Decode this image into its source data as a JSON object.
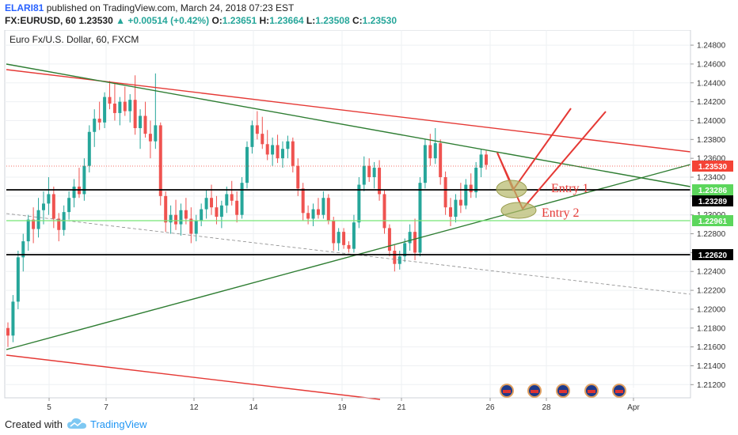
{
  "header": {
    "user": "ELARI81",
    "published": "published on TradingView.com, March 24, 2018 07:23 EST",
    "symbol": "FX:EURUSD, 60",
    "last": "1.23530",
    "arrow": "▲",
    "change": "+0.00514 (+0.42%)",
    "o_label": "O:",
    "o_value": "1.23651",
    "h_label": "H:",
    "h_value": "1.23664",
    "l_label": "L:",
    "l_value": "1.23508",
    "c_label": "C:",
    "c_value": "1.23530"
  },
  "footer": {
    "created": "Created with",
    "brand": "TradingView"
  },
  "colors": {
    "up": "#26a69a",
    "down": "#ef5350",
    "trend_green": "#2e7d32",
    "trend_red": "#e53935",
    "level_black": "#000000",
    "level_lightgreen": "#76e576",
    "price_red": "#f44336",
    "ellipse": "#b5b86a"
  },
  "chart_data": {
    "type": "candlestick",
    "title": "Euro Fx/U.S. Dollar, 60, FXCM",
    "x_tick_labels": [
      "5",
      "7",
      "12",
      "14",
      "19",
      "21",
      "26",
      "28",
      "Apr"
    ],
    "y_tick_labels": [
      "1.24800",
      "1.24600",
      "1.24400",
      "1.24200",
      "1.24000",
      "1.23800",
      "1.23600",
      "1.23400",
      "1.23200",
      "1.23000",
      "1.22800",
      "1.22600",
      "1.22400",
      "1.22200",
      "1.22000",
      "1.21800",
      "1.21600",
      "1.21400",
      "1.21200"
    ],
    "ylim": [
      1.2106,
      1.2496
    ],
    "price_labels": [
      {
        "value": "1.23530",
        "style": "red"
      },
      {
        "value": "1.23286",
        "style": "green"
      },
      {
        "value": "1.23289",
        "style": "black"
      },
      {
        "value": "1.22961",
        "style": "green"
      },
      {
        "value": "1.22620",
        "style": "black"
      }
    ],
    "annotations": [
      "Entry 1",
      "Entry 2"
    ],
    "event_badges": [
      "3",
      "3",
      "8",
      "5",
      "34"
    ],
    "candles": [
      {
        "o": 1.218,
        "h": 1.2186,
        "l": 1.216,
        "c": 1.2172
      },
      {
        "o": 1.2172,
        "h": 1.2215,
        "l": 1.2165,
        "c": 1.2208
      },
      {
        "o": 1.2208,
        "h": 1.2262,
        "l": 1.22,
        "c": 1.2255
      },
      {
        "o": 1.2255,
        "h": 1.228,
        "l": 1.224,
        "c": 1.2272
      },
      {
        "o": 1.2272,
        "h": 1.23,
        "l": 1.2262,
        "c": 1.2295
      },
      {
        "o": 1.2295,
        "h": 1.2308,
        "l": 1.227,
        "c": 1.2285
      },
      {
        "o": 1.2285,
        "h": 1.2318,
        "l": 1.2276,
        "c": 1.2305
      },
      {
        "o": 1.2305,
        "h": 1.2325,
        "l": 1.229,
        "c": 1.2312
      },
      {
        "o": 1.2312,
        "h": 1.234,
        "l": 1.23,
        "c": 1.2322
      },
      {
        "o": 1.2322,
        "h": 1.233,
        "l": 1.2286,
        "c": 1.2296
      },
      {
        "o": 1.2296,
        "h": 1.2302,
        "l": 1.2272,
        "c": 1.2284
      },
      {
        "o": 1.2284,
        "h": 1.231,
        "l": 1.2278,
        "c": 1.2303
      },
      {
        "o": 1.2303,
        "h": 1.2325,
        "l": 1.2295,
        "c": 1.2318
      },
      {
        "o": 1.2318,
        "h": 1.2338,
        "l": 1.2308,
        "c": 1.233
      },
      {
        "o": 1.233,
        "h": 1.235,
        "l": 1.2318,
        "c": 1.2322
      },
      {
        "o": 1.2322,
        "h": 1.236,
        "l": 1.2315,
        "c": 1.2352
      },
      {
        "o": 1.2352,
        "h": 1.2395,
        "l": 1.2345,
        "c": 1.2388
      },
      {
        "o": 1.2388,
        "h": 1.2412,
        "l": 1.2372,
        "c": 1.2402
      },
      {
        "o": 1.2402,
        "h": 1.242,
        "l": 1.239,
        "c": 1.2398
      },
      {
        "o": 1.2398,
        "h": 1.243,
        "l": 1.2392,
        "c": 1.2425
      },
      {
        "o": 1.2425,
        "h": 1.2442,
        "l": 1.2412,
        "c": 1.2418
      },
      {
        "o": 1.2418,
        "h": 1.244,
        "l": 1.24,
        "c": 1.2408
      },
      {
        "o": 1.2408,
        "h": 1.2425,
        "l": 1.2395,
        "c": 1.242
      },
      {
        "o": 1.242,
        "h": 1.2436,
        "l": 1.2405,
        "c": 1.241
      },
      {
        "o": 1.241,
        "h": 1.2428,
        "l": 1.2398,
        "c": 1.2422
      },
      {
        "o": 1.2422,
        "h": 1.2448,
        "l": 1.2385,
        "c": 1.2392
      },
      {
        "o": 1.2392,
        "h": 1.2412,
        "l": 1.237,
        "c": 1.2405
      },
      {
        "o": 1.2405,
        "h": 1.242,
        "l": 1.2382,
        "c": 1.2386
      },
      {
        "o": 1.2386,
        "h": 1.24,
        "l": 1.236,
        "c": 1.2378
      },
      {
        "o": 1.2378,
        "h": 1.245,
        "l": 1.237,
        "c": 1.2395
      },
      {
        "o": 1.2395,
        "h": 1.2398,
        "l": 1.231,
        "c": 1.232
      },
      {
        "o": 1.232,
        "h": 1.2325,
        "l": 1.2282,
        "c": 1.2292
      },
      {
        "o": 1.2292,
        "h": 1.231,
        "l": 1.228,
        "c": 1.23
      },
      {
        "o": 1.23,
        "h": 1.2316,
        "l": 1.2284,
        "c": 1.229
      },
      {
        "o": 1.229,
        "h": 1.2312,
        "l": 1.2278,
        "c": 1.2305
      },
      {
        "o": 1.2305,
        "h": 1.2318,
        "l": 1.229,
        "c": 1.2296
      },
      {
        "o": 1.2296,
        "h": 1.2308,
        "l": 1.227,
        "c": 1.228
      },
      {
        "o": 1.228,
        "h": 1.23,
        "l": 1.2272,
        "c": 1.2294
      },
      {
        "o": 1.2294,
        "h": 1.2312,
        "l": 1.2288,
        "c": 1.2306
      },
      {
        "o": 1.2306,
        "h": 1.2326,
        "l": 1.2296,
        "c": 1.2318
      },
      {
        "o": 1.2318,
        "h": 1.2332,
        "l": 1.23,
        "c": 1.2308
      },
      {
        "o": 1.2308,
        "h": 1.232,
        "l": 1.229,
        "c": 1.2298
      },
      {
        "o": 1.2298,
        "h": 1.2315,
        "l": 1.2286,
        "c": 1.231
      },
      {
        "o": 1.231,
        "h": 1.233,
        "l": 1.2302,
        "c": 1.2322
      },
      {
        "o": 1.2322,
        "h": 1.2336,
        "l": 1.231,
        "c": 1.2315
      },
      {
        "o": 1.2315,
        "h": 1.2325,
        "l": 1.2292,
        "c": 1.23
      },
      {
        "o": 1.23,
        "h": 1.234,
        "l": 1.2296,
        "c": 1.2334
      },
      {
        "o": 1.2334,
        "h": 1.2378,
        "l": 1.2328,
        "c": 1.2372
      },
      {
        "o": 1.2372,
        "h": 1.24,
        "l": 1.2365,
        "c": 1.2395
      },
      {
        "o": 1.2395,
        "h": 1.241,
        "l": 1.238,
        "c": 1.2386
      },
      {
        "o": 1.2386,
        "h": 1.2404,
        "l": 1.237,
        "c": 1.2375
      },
      {
        "o": 1.2375,
        "h": 1.239,
        "l": 1.2358,
        "c": 1.2364
      },
      {
        "o": 1.2364,
        "h": 1.2382,
        "l": 1.2352,
        "c": 1.2374
      },
      {
        "o": 1.2374,
        "h": 1.2385,
        "l": 1.2355,
        "c": 1.236
      },
      {
        "o": 1.236,
        "h": 1.2378,
        "l": 1.235,
        "c": 1.237
      },
      {
        "o": 1.237,
        "h": 1.2384,
        "l": 1.236,
        "c": 1.2378
      },
      {
        "o": 1.2378,
        "h": 1.2382,
        "l": 1.2345,
        "c": 1.2352
      },
      {
        "o": 1.2352,
        "h": 1.236,
        "l": 1.232,
        "c": 1.2328
      },
      {
        "o": 1.2328,
        "h": 1.2334,
        "l": 1.2294,
        "c": 1.2302
      },
      {
        "o": 1.2302,
        "h": 1.231,
        "l": 1.229,
        "c": 1.2296
      },
      {
        "o": 1.2296,
        "h": 1.2312,
        "l": 1.2288,
        "c": 1.2306
      },
      {
        "o": 1.2306,
        "h": 1.2318,
        "l": 1.2296,
        "c": 1.23
      },
      {
        "o": 1.23,
        "h": 1.2325,
        "l": 1.2296,
        "c": 1.2318
      },
      {
        "o": 1.2318,
        "h": 1.2322,
        "l": 1.229,
        "c": 1.2294
      },
      {
        "o": 1.2294,
        "h": 1.2298,
        "l": 1.2262,
        "c": 1.227
      },
      {
        "o": 1.227,
        "h": 1.2286,
        "l": 1.2262,
        "c": 1.2282
      },
      {
        "o": 1.2282,
        "h": 1.2286,
        "l": 1.2264,
        "c": 1.2268
      },
      {
        "o": 1.2268,
        "h": 1.2272,
        "l": 1.226,
        "c": 1.2264
      },
      {
        "o": 1.2264,
        "h": 1.23,
        "l": 1.226,
        "c": 1.2292
      },
      {
        "o": 1.2292,
        "h": 1.234,
        "l": 1.2286,
        "c": 1.2332
      },
      {
        "o": 1.2332,
        "h": 1.2362,
        "l": 1.2325,
        "c": 1.2352
      },
      {
        "o": 1.2352,
        "h": 1.236,
        "l": 1.2335,
        "c": 1.234
      },
      {
        "o": 1.234,
        "h": 1.2356,
        "l": 1.2328,
        "c": 1.235
      },
      {
        "o": 1.235,
        "h": 1.2358,
        "l": 1.2315,
        "c": 1.2322
      },
      {
        "o": 1.2322,
        "h": 1.2326,
        "l": 1.228,
        "c": 1.2286
      },
      {
        "o": 1.2286,
        "h": 1.229,
        "l": 1.2256,
        "c": 1.2262
      },
      {
        "o": 1.2262,
        "h": 1.2268,
        "l": 1.224,
        "c": 1.2248
      },
      {
        "o": 1.2248,
        "h": 1.2262,
        "l": 1.2242,
        "c": 1.2256
      },
      {
        "o": 1.2256,
        "h": 1.2275,
        "l": 1.225,
        "c": 1.227
      },
      {
        "o": 1.227,
        "h": 1.229,
        "l": 1.2262,
        "c": 1.2282
      },
      {
        "o": 1.2282,
        "h": 1.2296,
        "l": 1.2252,
        "c": 1.226
      },
      {
        "o": 1.226,
        "h": 1.234,
        "l": 1.2256,
        "c": 1.2334
      },
      {
        "o": 1.2334,
        "h": 1.238,
        "l": 1.2328,
        "c": 1.2374
      },
      {
        "o": 1.2374,
        "h": 1.2386,
        "l": 1.2352,
        "c": 1.236
      },
      {
        "o": 1.236,
        "h": 1.2392,
        "l": 1.2354,
        "c": 1.2376
      },
      {
        "o": 1.2376,
        "h": 1.238,
        "l": 1.2332,
        "c": 1.234
      },
      {
        "o": 1.234,
        "h": 1.2346,
        "l": 1.23,
        "c": 1.2308
      },
      {
        "o": 1.2308,
        "h": 1.2318,
        "l": 1.2288,
        "c": 1.2298
      },
      {
        "o": 1.2298,
        "h": 1.2322,
        "l": 1.2292,
        "c": 1.2316
      },
      {
        "o": 1.2316,
        "h": 1.2334,
        "l": 1.2302,
        "c": 1.231
      },
      {
        "o": 1.231,
        "h": 1.2338,
        "l": 1.2306,
        "c": 1.2332
      },
      {
        "o": 1.2332,
        "h": 1.2344,
        "l": 1.2318,
        "c": 1.2324
      },
      {
        "o": 1.2324,
        "h": 1.2356,
        "l": 1.2318,
        "c": 1.235
      },
      {
        "o": 1.235,
        "h": 1.237,
        "l": 1.234,
        "c": 1.2364
      },
      {
        "o": 1.2364,
        "h": 1.2368,
        "l": 1.2348,
        "c": 1.2353
      }
    ]
  }
}
